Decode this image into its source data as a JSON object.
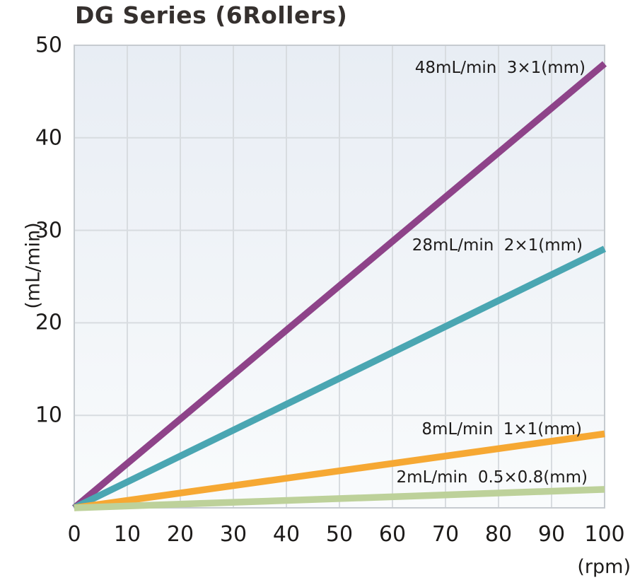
{
  "title": "DG Series (6Rollers)",
  "chart_data": {
    "type": "line",
    "title": "DG Series (6Rollers)",
    "xlabel": "(rpm)",
    "ylabel": "(mL/min)",
    "xlim": [
      0,
      100
    ],
    "ylim": [
      0,
      50
    ],
    "x_ticks": [
      0,
      10,
      20,
      30,
      40,
      50,
      60,
      70,
      80,
      90,
      100
    ],
    "y_ticks": [
      10,
      20,
      30,
      40,
      50
    ],
    "grid": true,
    "legend_position": "inline-labels",
    "series": [
      {
        "name": "3×1(mm)",
        "label": "48mL/min 3×1(mm)",
        "color": "#8E4389",
        "x": [
          0,
          100
        ],
        "values": [
          0,
          48
        ],
        "flow_at_100rpm_mL_min": 48,
        "tubing_mm": "3×1"
      },
      {
        "name": "2×1(mm)",
        "label": "28mL/min 2×1(mm)",
        "color": "#4AA6B2",
        "x": [
          0,
          100
        ],
        "values": [
          0,
          28
        ],
        "flow_at_100rpm_mL_min": 28,
        "tubing_mm": "2×1"
      },
      {
        "name": "1×1(mm)",
        "label": "8mL/min 1×1(mm)",
        "color": "#F6A833",
        "x": [
          0,
          100
        ],
        "values": [
          0,
          8
        ],
        "flow_at_100rpm_mL_min": 8,
        "tubing_mm": "1×1"
      },
      {
        "name": "0.5×0.8(mm)",
        "label": "2mL/min 0.5×0.8(mm)",
        "color": "#BDD19A",
        "x": [
          0,
          100
        ],
        "values": [
          0,
          2
        ],
        "flow_at_100rpm_mL_min": 2,
        "tubing_mm": "0.5×0.8"
      }
    ]
  },
  "colors": {
    "plot_bg_top": "#E8EDF4",
    "plot_bg_bottom": "#F9FBFC",
    "gridline": "#D8DCE0",
    "plot_border": "#C6CBD0",
    "text": "#1d1b1a",
    "title_text": "#35302e"
  }
}
